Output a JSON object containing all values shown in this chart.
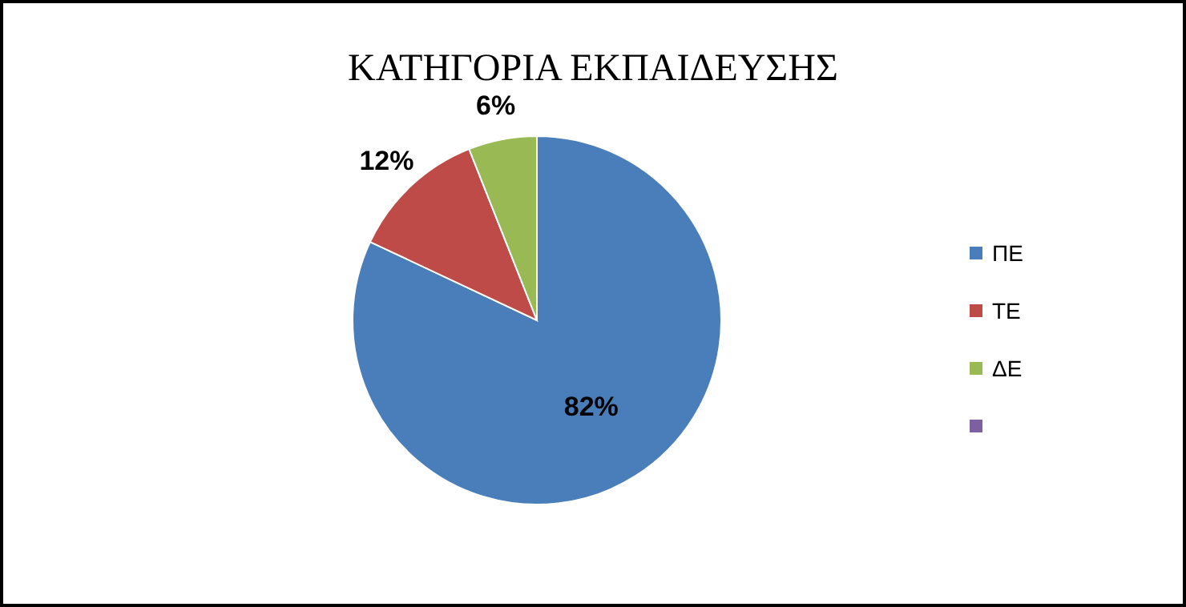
{
  "chart_data": {
    "type": "pie",
    "title": "ΚΑΤΗΓΟΡΙΑ ΕΚΠΑΙΔΕΥΣΗΣ",
    "categories": [
      "ΠΕ",
      "ΤΕ",
      "ΔΕ",
      null
    ],
    "values": [
      82,
      12,
      6,
      0
    ],
    "colors": [
      "#4a7ebb",
      "#be4b48",
      "#98b954",
      "#7d60a0"
    ],
    "value_labels": [
      "82%",
      "12%",
      "6%",
      null
    ],
    "legend": "right"
  }
}
